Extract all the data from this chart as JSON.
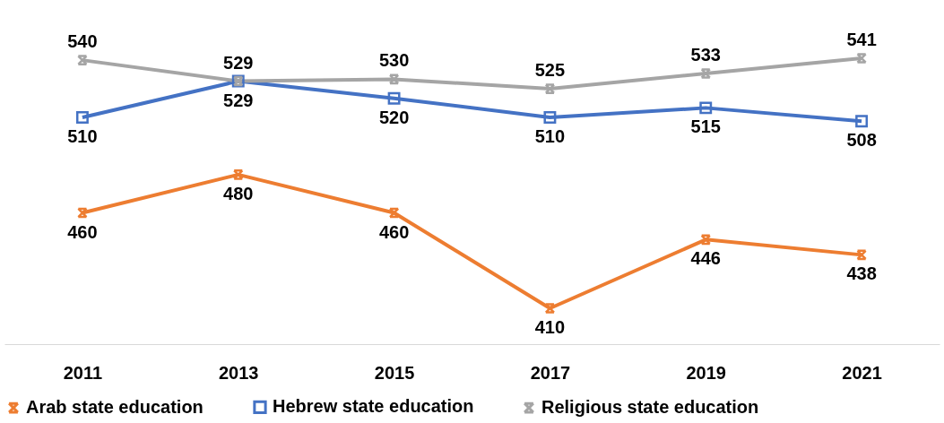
{
  "chart_data": {
    "type": "line",
    "categories": [
      "2011",
      "2013",
      "2015",
      "2017",
      "2019",
      "2021"
    ],
    "series": [
      {
        "name": "Arab state education",
        "color": "#ed7d31",
        "marker": "cross",
        "values": [
          460,
          480,
          460,
          410,
          446,
          438
        ]
      },
      {
        "name": "Hebrew state education",
        "color": "#4472c4",
        "marker": "square",
        "values": [
          510,
          529,
          520,
          510,
          515,
          508
        ]
      },
      {
        "name": "Religious state education",
        "color": "#a5a5a5",
        "marker": "cross",
        "values": [
          540,
          529,
          530,
          525,
          533,
          541
        ]
      }
    ],
    "tick_labels": "x",
    "data_labels": true,
    "legend": "bottom",
    "grid": false,
    "line_style": "solid"
  }
}
